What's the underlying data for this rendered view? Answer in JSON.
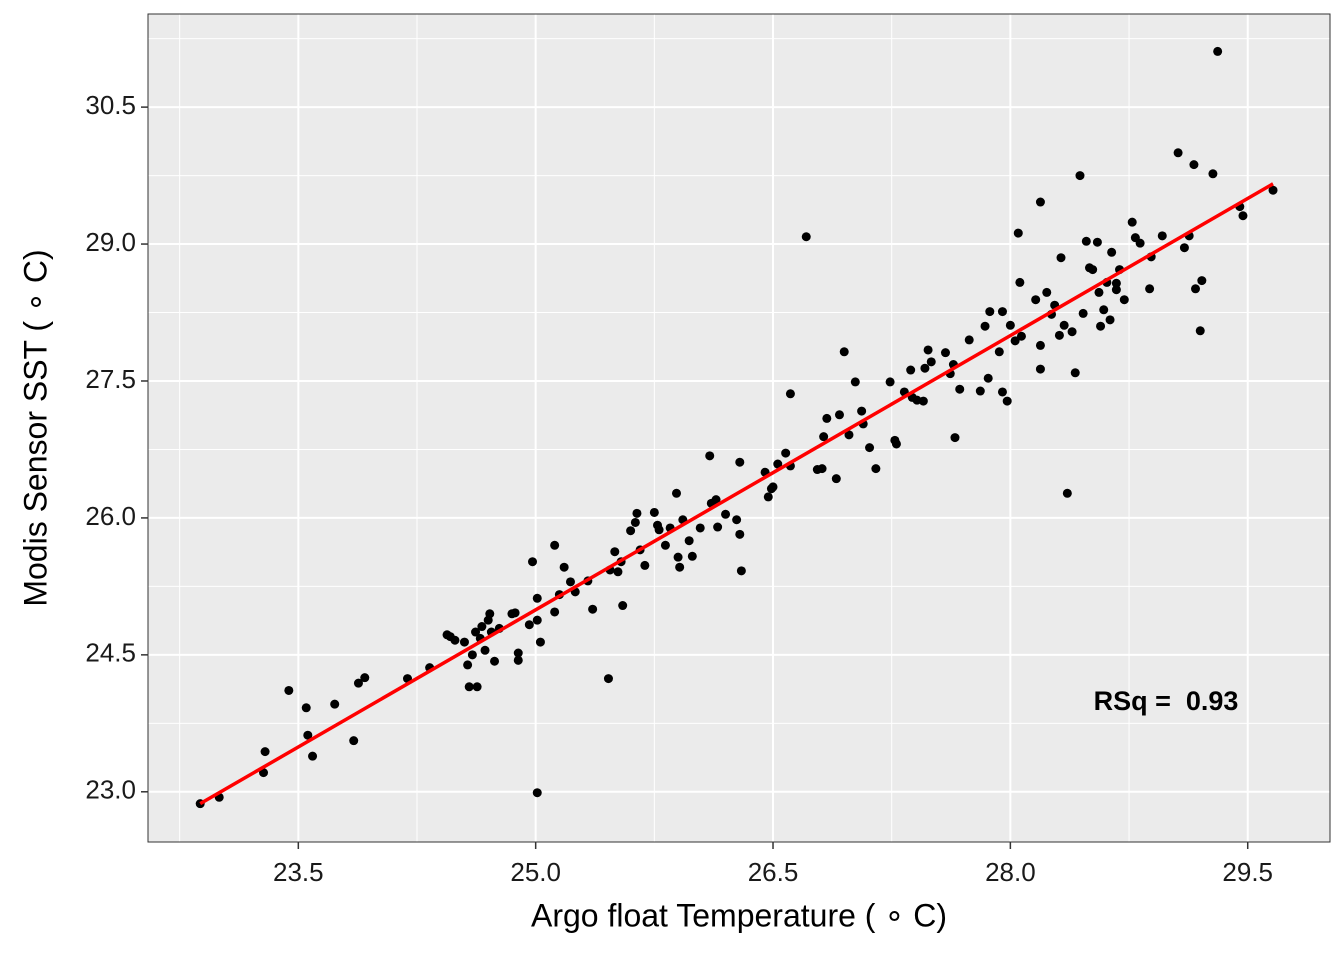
{
  "chart_data": {
    "type": "scatter",
    "x_label": "Argo float Temperature ( ∘ C)",
    "y_label": "Modis Sensor SST ( ∘ C)",
    "annotation": "RSq =  0.93",
    "xlim": [
      22.55,
      30.02
    ],
    "ylim": [
      22.45,
      31.52
    ],
    "xticks": [
      23.5,
      {
        "value": 25,
        "label": "25.0"
      },
      26.5,
      {
        "value": 28,
        "label": "28.0"
      },
      29.5
    ],
    "yticks": [
      {
        "value": 23,
        "label": "23.0"
      },
      24.5,
      {
        "value": 26,
        "label": "26.0"
      },
      27.5,
      {
        "value": 29,
        "label": "29.0"
      },
      30.5
    ],
    "x_minor_ticks": [
      22.75,
      24.25,
      25.75,
      27.25,
      28.75
    ],
    "y_minor_ticks": [
      23.75,
      25.25,
      26.75,
      28.25,
      29.75,
      31.25
    ],
    "grid": true,
    "color": "#000000",
    "x": [
      22.88,
      23.0,
      23.28,
      23.29,
      23.44,
      23.55,
      23.56,
      23.59,
      23.73,
      23.85,
      23.88,
      23.92,
      24.19,
      24.33,
      24.44,
      24.46,
      24.49,
      24.55,
      24.57,
      24.58,
      24.6,
      24.62,
      24.63,
      24.65,
      24.66,
      24.68,
      24.7,
      24.71,
      24.72,
      24.74,
      24.77,
      24.85,
      24.87,
      24.89,
      24.89,
      24.96,
      24.98,
      25.01,
      25.01,
      25.03,
      25.01,
      25.12,
      25.12,
      25.15,
      25.18,
      25.22,
      25.25,
      25.33,
      25.36,
      25.46,
      25.47,
      25.5,
      25.52,
      25.54,
      25.55,
      25.6,
      25.63,
      25.64,
      25.66,
      25.69,
      25.75,
      25.77,
      25.78,
      25.82,
      25.85,
      25.89,
      25.9,
      25.91,
      25.93,
      25.97,
      25.99,
      26.04,
      26.1,
      26.11,
      26.14,
      26.15,
      26.2,
      26.29,
      26.3,
      26.27,
      26.29,
      26.45,
      26.47,
      26.49,
      26.5,
      26.53,
      26.58,
      26.61,
      26.61,
      26.71,
      26.78,
      26.81,
      26.82,
      26.84,
      26.9,
      26.92,
      26.95,
      26.98,
      27.02,
      27.06,
      27.07,
      27.11,
      27.15,
      27.24,
      27.27,
      27.28,
      27.33,
      27.38,
      27.37,
      27.41,
      27.45,
      27.46,
      27.48,
      27.5,
      27.59,
      27.62,
      27.64,
      27.65,
      27.68,
      27.74,
      27.81,
      27.84,
      27.86,
      27.87,
      27.93,
      27.95,
      27.95,
      27.98,
      28.0,
      28.03,
      28.05,
      28.06,
      28.07,
      28.16,
      28.19,
      28.19,
      28.19,
      28.23,
      28.26,
      28.28,
      28.31,
      28.32,
      28.34,
      28.36,
      28.39,
      28.41,
      28.44,
      28.46,
      28.48,
      28.5,
      28.52,
      28.55,
      28.56,
      28.57,
      28.59,
      28.61,
      28.64,
      28.63,
      28.67,
      28.67,
      28.69,
      28.72,
      28.77,
      28.79,
      28.82,
      28.88,
      28.89,
      28.96,
      29.06,
      29.1,
      29.13,
      29.16,
      29.17,
      29.2,
      29.21,
      29.28,
      29.31,
      29.45,
      29.47,
      29.66
    ],
    "values": [
      22.87,
      22.94,
      23.21,
      23.44,
      24.11,
      23.92,
      23.62,
      23.39,
      23.96,
      23.56,
      24.19,
      24.25,
      24.24,
      24.36,
      24.72,
      24.7,
      24.66,
      24.64,
      24.39,
      24.15,
      24.5,
      24.75,
      24.15,
      24.68,
      24.81,
      24.55,
      24.88,
      24.95,
      24.75,
      24.43,
      24.79,
      24.95,
      24.96,
      24.44,
      24.52,
      24.83,
      25.52,
      25.12,
      24.88,
      24.64,
      22.99,
      25.7,
      24.97,
      25.16,
      25.46,
      25.3,
      25.19,
      25.31,
      25.0,
      24.24,
      25.43,
      25.63,
      25.41,
      25.52,
      25.04,
      25.86,
      25.95,
      26.05,
      25.65,
      25.48,
      26.06,
      25.92,
      25.87,
      25.7,
      25.89,
      26.27,
      25.57,
      25.46,
      25.98,
      25.75,
      25.58,
      25.89,
      26.68,
      26.16,
      26.2,
      25.9,
      26.04,
      26.61,
      25.42,
      25.98,
      25.82,
      26.5,
      26.23,
      26.32,
      26.34,
      26.59,
      26.71,
      26.57,
      27.36,
      29.08,
      26.53,
      26.54,
      26.89,
      27.09,
      26.43,
      27.13,
      27.82,
      26.91,
      27.49,
      27.17,
      27.03,
      26.77,
      26.54,
      27.49,
      26.85,
      26.81,
      27.38,
      27.32,
      27.62,
      27.29,
      27.28,
      27.64,
      27.84,
      27.71,
      27.81,
      27.58,
      27.68,
      26.88,
      27.41,
      27.95,
      27.39,
      28.1,
      27.53,
      28.26,
      27.82,
      28.26,
      27.38,
      27.28,
      28.11,
      27.94,
      29.12,
      28.58,
      27.99,
      28.39,
      29.46,
      27.89,
      27.63,
      28.47,
      28.23,
      28.33,
      28.0,
      28.85,
      28.11,
      26.27,
      28.04,
      27.59,
      29.75,
      28.24,
      29.03,
      28.74,
      28.72,
      29.02,
      28.47,
      28.1,
      28.28,
      28.58,
      28.91,
      28.17,
      28.5,
      28.57,
      28.72,
      28.39,
      29.24,
      29.07,
      29.01,
      28.51,
      28.86,
      29.09,
      30.0,
      28.96,
      29.09,
      29.87,
      28.51,
      28.05,
      28.6,
      29.77,
      31.11,
      29.41,
      29.31,
      29.59
    ],
    "fit": {
      "x": [
        22.88,
        29.66
      ],
      "values": [
        22.87,
        29.66
      ],
      "color": "#ff0000"
    }
  }
}
